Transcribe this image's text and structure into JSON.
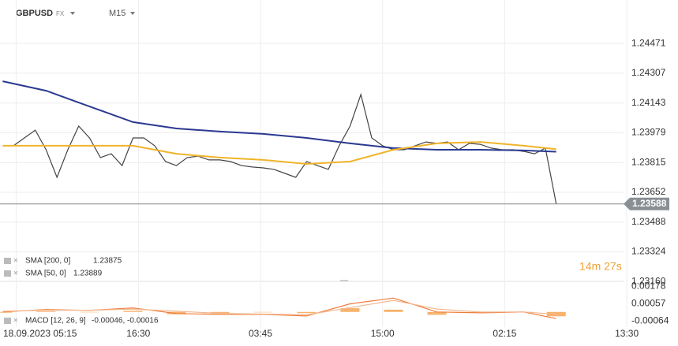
{
  "header": {
    "symbol": "GBPUSD",
    "market": "FX",
    "timeframe": "M15"
  },
  "chart_data": [
    {
      "type": "line",
      "xlim": [
        -1,
        232
      ],
      "xticks": [
        {
          "value": 5,
          "label": "18.09.2023 05:15"
        },
        {
          "value": 50,
          "label": "16:30"
        },
        {
          "value": 95,
          "label": "03:45"
        },
        {
          "value": 140,
          "label": "15:00"
        },
        {
          "value": 185,
          "label": "02:15"
        },
        {
          "value": 230,
          "label": "13:30"
        }
      ],
      "ylim": [
        1.2314,
        1.2471
      ],
      "yticks": [
        1.24471,
        1.24307,
        1.24143,
        1.23979,
        1.23815,
        1.23652,
        1.23488,
        1.23324,
        {
          "value": 1.2316,
          "label": "1.23160"
        }
      ],
      "grid": true,
      "last_price": 1.23588,
      "countdown": "14m 27s",
      "series": [
        {
          "name": "GBPUSD",
          "color": "#444444",
          "x": [
            0,
            4,
            8,
            12,
            16,
            20,
            24,
            28,
            32,
            36,
            40,
            44,
            48,
            52,
            56,
            60,
            64,
            68,
            72,
            76,
            80,
            84,
            88,
            92,
            96,
            100,
            104,
            108,
            112,
            116,
            120,
            124,
            128,
            132,
            136,
            140,
            144,
            148,
            152,
            156,
            160,
            164,
            168,
            172,
            176,
            180,
            184,
            188,
            192,
            196,
            200,
            204
          ],
          "values": [
            1.23908,
            1.23908,
            1.23951,
            1.23994,
            1.23886,
            1.23734,
            1.23886,
            1.24016,
            1.23951,
            1.23843,
            1.23864,
            1.23799,
            1.23951,
            1.23951,
            1.23908,
            1.23821,
            1.23799,
            1.23843,
            1.23851,
            1.2383,
            1.2383,
            1.23821,
            1.23799,
            1.23791,
            1.23786,
            1.23778,
            1.23756,
            1.23734,
            1.23821,
            1.23799,
            1.23778,
            1.23908,
            1.24016,
            1.2419,
            1.23951,
            1.23908,
            1.23886,
            1.23886,
            1.23908,
            1.23929,
            1.23921,
            1.23929,
            1.23886,
            1.23921,
            1.23916,
            1.23895,
            1.23886,
            1.23886,
            1.23877,
            1.23864,
            1.23895,
            1.23588
          ]
        },
        {
          "name": "SMA [200, 0]",
          "color": "#2b3990",
          "x": [
            0,
            16,
            32,
            48,
            64,
            80,
            96,
            112,
            128,
            144,
            160,
            176,
            192,
            204
          ],
          "values": [
            1.24263,
            1.24211,
            1.24124,
            1.24038,
            1.24003,
            1.23986,
            1.23973,
            1.23951,
            1.23921,
            1.23895,
            1.23886,
            1.23886,
            1.23882,
            1.23875
          ]
        },
        {
          "name": "SMA [50, 0]",
          "color": "#f0b429",
          "x": [
            0,
            16,
            32,
            48,
            64,
            80,
            96,
            112,
            128,
            144,
            160,
            176,
            192,
            204
          ],
          "values": [
            1.23908,
            1.23908,
            1.23908,
            1.23908,
            1.23864,
            1.23843,
            1.2383,
            1.23808,
            1.23821,
            1.23886,
            1.23921,
            1.23929,
            1.23908,
            1.23889
          ]
        }
      ]
    },
    {
      "type": "macd",
      "name": "MACD [12, 26, 9]",
      "legend_values": "-0.00046, -0.00016",
      "xlim": [
        -1,
        232
      ],
      "ylim": [
        -0.00132,
        0.00206
      ],
      "yticks": [
        0.00178,
        0.00057,
        -0.00064
      ],
      "x": [
        0,
        16,
        32,
        48,
        64,
        80,
        96,
        112,
        128,
        144,
        160,
        176,
        192,
        204
      ],
      "histogram": {
        "color": "#f5a04a",
        "values": [
          -5e-05,
          5e-05,
          -1e-05,
          8e-05,
          -0.00016,
          -7e-05,
          -2e-05,
          -8e-05,
          0.00026,
          0.00016,
          -0.0002,
          -6e-05,
          0,
          -0.0003
        ]
      },
      "series": [
        {
          "name": "MACD",
          "color": "#f07c3c",
          "values": [
            0,
            0.00017,
            0.00011,
            0.00028,
            -0.00011,
            -0.00017,
            -0.00017,
            -0.00028,
            0.00056,
            0.00096,
            0,
            -6e-05,
            0,
            -0.00046
          ]
        },
        {
          "name": "Signal",
          "color": "#f2b890",
          "values": [
            5e-05,
            0.00012,
            0.00012,
            0.0002,
            5e-05,
            -0.0001,
            -0.00015,
            -0.0002,
            0.0003,
            0.0008,
            0.0002,
            0,
            0,
            -0.00016
          ]
        }
      ]
    }
  ]
}
